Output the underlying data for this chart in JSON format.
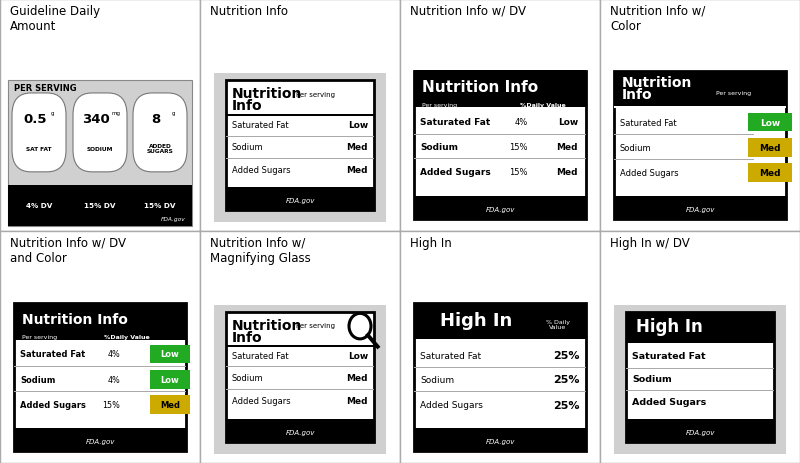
{
  "bg_color": "#ffffff",
  "gray_panel": "#d8d8d8",
  "green_color": "#22aa22",
  "yellow_color": "#ccaa00",
  "grid_color": "#aaaaaa",
  "cell_titles": [
    [
      "Guideline Daily\nAmount",
      "Nutrition Info",
      "Nutrition Info w/ DV",
      "Nutrition Info w/\nColor"
    ],
    [
      "Nutrition Info w/ DV\nand Color",
      "Nutrition Info w/\nMagnifying Glass",
      "High In",
      "High In w/ DV"
    ]
  ],
  "figsize": [
    8.0,
    4.64
  ],
  "dpi": 100
}
